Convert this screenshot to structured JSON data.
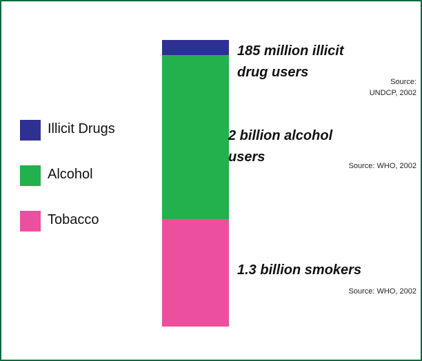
{
  "chart_data": {
    "type": "bar",
    "stacked": true,
    "segments": [
      {
        "name": "Illicit Drugs",
        "value": 185,
        "unit": "million",
        "color": "#2e3192",
        "annotation_lines": [
          "185 million illicit",
          "drug users"
        ],
        "source_lines": [
          "Source:",
          "UNDCP, 2002"
        ]
      },
      {
        "name": "Alcohol",
        "value": 2000,
        "unit": "million",
        "color": "#22b14c",
        "annotation_lines": [
          "2 billion alcohol",
          "users"
        ],
        "source_lines": [
          "Source: WHO, 2002"
        ]
      },
      {
        "name": "Tobacco",
        "value": 1300,
        "unit": "million",
        "color": "#ec4f9e",
        "annotation_lines": [
          "1.3 billion smokers"
        ],
        "source_lines": [
          "Source: WHO, 2002"
        ]
      }
    ],
    "legend": [
      "Illicit Drugs",
      "Alcohol",
      "Tobacco"
    ],
    "legend_position": "left"
  },
  "colors": {
    "border": "#0f6a3f",
    "background": "#ffffff"
  }
}
